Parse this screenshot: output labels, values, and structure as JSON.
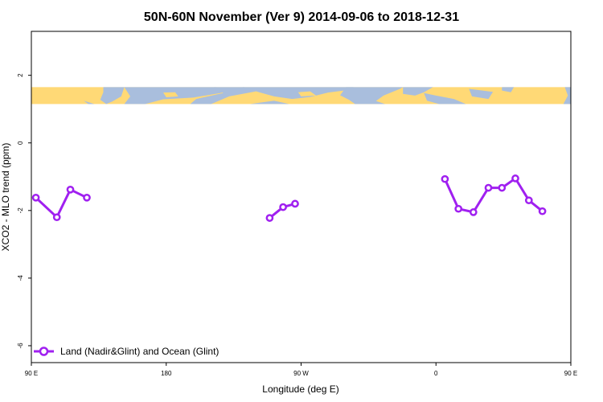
{
  "chart_data": {
    "type": "line",
    "title": "50N-60N November (Ver 9)   2014-09-06 to 2018-12-31",
    "xlabel": "Longitude (deg E)",
    "ylabel": "XCO2 - MLO trend (ppm)",
    "xlim": [
      90,
      450
    ],
    "ylim": [
      -6.5,
      3.3
    ],
    "x_ticks": [
      {
        "value": 90,
        "label": "90 E"
      },
      {
        "value": 180,
        "label": "180"
      },
      {
        "value": 270,
        "label": "90 W"
      },
      {
        "value": 360,
        "label": "0"
      },
      {
        "value": 450,
        "label": "90 E"
      }
    ],
    "y_ticks": [
      {
        "value": 2,
        "label": "2"
      },
      {
        "value": 0,
        "label": "0"
      },
      {
        "value": -2,
        "label": "-2"
      },
      {
        "value": -4,
        "label": "-4"
      },
      {
        "value": -6,
        "label": "-6"
      }
    ],
    "map_band": {
      "y_range": [
        1.15,
        1.65
      ],
      "land_color": "#FFD976",
      "ocean_color": "#A9BEDD"
    },
    "series": [
      {
        "name": "Land (Nadir&Glint) and Ocean (Glint)",
        "color": "#A020F0",
        "segments": [
          [
            [
              93,
              -1.62
            ],
            [
              107,
              -2.2
            ],
            [
              116,
              -1.38
            ],
            [
              127,
              -1.62
            ]
          ],
          [
            [
              249,
              -2.22
            ],
            [
              258,
              -1.9
            ],
            [
              266,
              -1.8
            ]
          ],
          [
            [
              366,
              -1.07
            ],
            [
              375,
              -1.95
            ],
            [
              385,
              -2.05
            ],
            [
              395,
              -1.33
            ],
            [
              404,
              -1.33
            ],
            [
              413,
              -1.05
            ],
            [
              422,
              -1.7
            ],
            [
              431,
              -2.02
            ]
          ],
          [
            [
              453,
              -1.62
            ],
            [
              467,
              -2.2
            ],
            [
              476,
              -1.38
            ],
            [
              487,
              -1.62
            ]
          ]
        ]
      }
    ],
    "legend_position": "bottom-left",
    "grid": false
  }
}
